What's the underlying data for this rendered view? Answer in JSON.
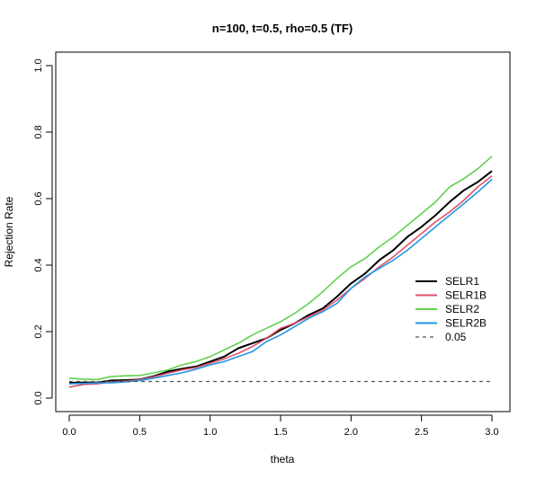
{
  "chart_data": {
    "type": "line",
    "title": "n=100, t=0.5, rho=0.5 (TF)",
    "xlabel": "theta",
    "ylabel": "Rejection Rate",
    "xlim": [
      0,
      3
    ],
    "ylim": [
      0,
      1
    ],
    "xticks": [
      "0.0",
      "0.5",
      "1.0",
      "1.5",
      "2.0",
      "2.5",
      "3.0"
    ],
    "yticks": [
      "0.0",
      "0.2",
      "0.4",
      "0.6",
      "0.8",
      "1.0"
    ],
    "grid": false,
    "legend_position": "right",
    "x": [
      0.0,
      0.1,
      0.2,
      0.3,
      0.4,
      0.5,
      0.6,
      0.7,
      0.8,
      0.9,
      1.0,
      1.1,
      1.2,
      1.3,
      1.4,
      1.5,
      1.6,
      1.7,
      1.8,
      1.9,
      2.0,
      2.1,
      2.2,
      2.3,
      2.4,
      2.5,
      2.6,
      2.7,
      2.8,
      2.9,
      3.0
    ],
    "series": [
      {
        "name": "SELR1",
        "color": "#000000",
        "style": "solid",
        "values": [
          0.046,
          0.047,
          0.047,
          0.053,
          0.054,
          0.056,
          0.066,
          0.08,
          0.088,
          0.095,
          0.11,
          0.125,
          0.15,
          0.165,
          0.18,
          0.205,
          0.225,
          0.25,
          0.27,
          0.305,
          0.345,
          0.375,
          0.415,
          0.445,
          0.485,
          0.515,
          0.55,
          0.59,
          0.625,
          0.65,
          0.683
        ]
      },
      {
        "name": "SELR1B",
        "color": "#DF536B",
        "style": "solid",
        "values": [
          0.033,
          0.041,
          0.043,
          0.049,
          0.051,
          0.055,
          0.064,
          0.075,
          0.085,
          0.092,
          0.105,
          0.118,
          0.135,
          0.155,
          0.18,
          0.21,
          0.225,
          0.245,
          0.265,
          0.295,
          0.33,
          0.36,
          0.395,
          0.425,
          0.46,
          0.495,
          0.53,
          0.56,
          0.595,
          0.635,
          0.668
        ]
      },
      {
        "name": "SELR2",
        "color": "#61D04F",
        "style": "solid",
        "values": [
          0.06,
          0.057,
          0.056,
          0.065,
          0.067,
          0.068,
          0.076,
          0.085,
          0.1,
          0.11,
          0.125,
          0.145,
          0.165,
          0.19,
          0.21,
          0.23,
          0.255,
          0.285,
          0.32,
          0.36,
          0.395,
          0.42,
          0.455,
          0.485,
          0.52,
          0.555,
          0.59,
          0.635,
          0.66,
          0.69,
          0.727
        ]
      },
      {
        "name": "SELR2B",
        "color": "#2297E6",
        "style": "solid",
        "values": [
          0.043,
          0.044,
          0.046,
          0.046,
          0.049,
          0.053,
          0.06,
          0.068,
          0.076,
          0.087,
          0.1,
          0.11,
          0.125,
          0.14,
          0.17,
          0.19,
          0.215,
          0.24,
          0.26,
          0.285,
          0.33,
          0.365,
          0.39,
          0.415,
          0.445,
          0.48,
          0.515,
          0.55,
          0.585,
          0.62,
          0.658
        ]
      },
      {
        "name": "0.05",
        "color": "#555555",
        "style": "dashed",
        "values": [
          0.05,
          0.05,
          0.05,
          0.05,
          0.05,
          0.05,
          0.05,
          0.05,
          0.05,
          0.05,
          0.05,
          0.05,
          0.05,
          0.05,
          0.05,
          0.05,
          0.05,
          0.05,
          0.05,
          0.05,
          0.05,
          0.05,
          0.05,
          0.05,
          0.05,
          0.05,
          0.05,
          0.05,
          0.05,
          0.05,
          0.05
        ]
      }
    ]
  }
}
